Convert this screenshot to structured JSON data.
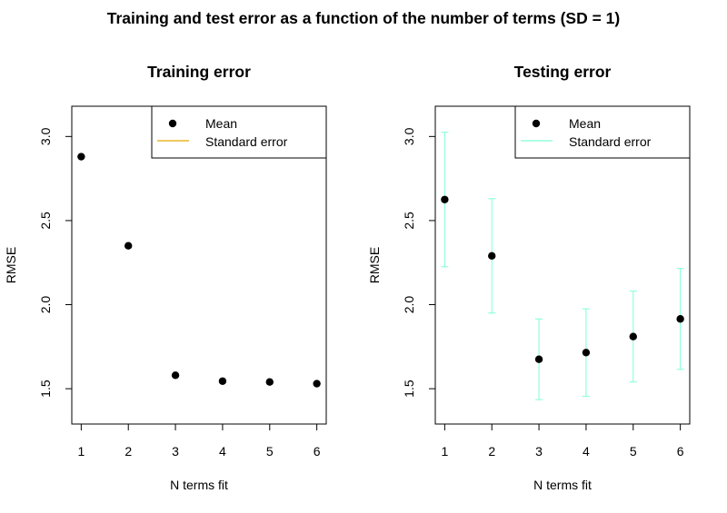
{
  "figure_title": "Training and test error as a function of the number of terms (SD = 1)",
  "chart_data": [
    {
      "type": "scatter",
      "title": "Training error",
      "xlabel": "N terms fit",
      "ylabel": "RMSE",
      "x": [
        1,
        2,
        3,
        4,
        5,
        6
      ],
      "series": [
        {
          "name": "Mean",
          "values": [
            2.88,
            2.35,
            1.58,
            1.545,
            1.54,
            1.53
          ]
        }
      ],
      "errors": [
        0,
        0,
        0,
        0,
        0,
        0
      ],
      "xticks": [
        "1",
        "2",
        "3",
        "4",
        "5",
        "6"
      ],
      "yticks": [
        "1.5",
        "2.0",
        "2.5",
        "3.0"
      ],
      "xlim": [
        0.8,
        6.2
      ],
      "ylim": [
        1.29,
        3.18
      ],
      "error_color": "#e5a800",
      "legend": {
        "position": "top-right",
        "entries": [
          "Mean",
          "Standard error"
        ]
      }
    },
    {
      "type": "scatter",
      "title": "Testing error",
      "xlabel": "N terms fit",
      "ylabel": "RMSE",
      "x": [
        1,
        2,
        3,
        4,
        5,
        6
      ],
      "series": [
        {
          "name": "Mean",
          "values": [
            2.625,
            2.29,
            1.675,
            1.715,
            1.81,
            1.915
          ]
        }
      ],
      "errors": [
        0.4,
        0.34,
        0.24,
        0.26,
        0.27,
        0.3
      ],
      "xticks": [
        "1",
        "2",
        "3",
        "4",
        "5",
        "6"
      ],
      "yticks": [
        "1.5",
        "2.0",
        "2.5",
        "3.0"
      ],
      "xlim": [
        0.8,
        6.2
      ],
      "ylim": [
        1.29,
        3.18
      ],
      "error_color": "#7fffd4",
      "legend": {
        "position": "top-right",
        "entries": [
          "Mean",
          "Standard error"
        ]
      }
    }
  ]
}
